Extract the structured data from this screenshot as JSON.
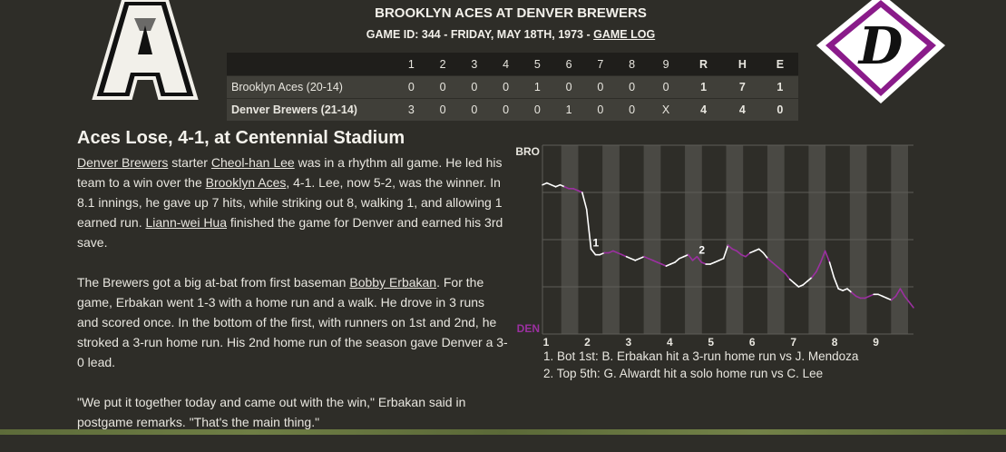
{
  "logos": {
    "away": {
      "letter": "A",
      "icon": "aces-a-logo"
    },
    "home": {
      "letter": "D",
      "icon": "brewers-d-diamond-logo",
      "accent": "#8a1b8a"
    }
  },
  "header": {
    "matchup": "BROOKLYN ACES AT DENVER BREWERS",
    "game_info": "GAME ID: 344 - FRIDAY, MAY 18TH, 1973 - ",
    "game_log_link": "GAME LOG"
  },
  "linescore": {
    "columns": [
      "1",
      "2",
      "3",
      "4",
      "5",
      "6",
      "7",
      "8",
      "9",
      "R",
      "H",
      "E"
    ],
    "rows": [
      {
        "team": "Brooklyn Aces (20-14)",
        "innings": [
          "0",
          "0",
          "0",
          "0",
          "1",
          "0",
          "0",
          "0",
          "0"
        ],
        "R": "1",
        "H": "7",
        "E": "1"
      },
      {
        "team": "Denver Brewers (21-14)",
        "innings": [
          "3",
          "0",
          "0",
          "0",
          "0",
          "1",
          "0",
          "0",
          "X"
        ],
        "R": "4",
        "H": "4",
        "E": "0"
      }
    ]
  },
  "article": {
    "headline": "Aces Lose, 4-1, at Centennial Stadium",
    "p1": {
      "link_team": "Denver Brewers",
      "t1": " starter ",
      "link_pitcher": "Cheol-han Lee",
      "t2": " was in a rhythm all game. He led his team to a win over the ",
      "link_opp": "Brooklyn Aces",
      "t3": ", 4-1. Lee, now 5-2, was the winner. In 8.1 innings, he gave up 7 hits, while striking out 8, walking 1, and allowing 1 earned run. ",
      "link_closer": "Liann-wei Hua",
      "t4": " finished the game for Denver and earned his 3rd save."
    },
    "p2": {
      "t1": "The Brewers got a big at-bat from first baseman ",
      "link_player": "Bobby Erbakan",
      "t2": ". For the game, Erbakan went 1-3 with a home run and a walk. He drove in 3 runs and scored once. In the bottom of the first, with runners on 1st and 2nd, he stroked a 3-run home run. His 2nd home run of the season gave Denver a 3-0 lead."
    },
    "p3": "\"We put it together today and came out with the win,\" Erbakan said in postgame remarks. \"That's the main thing.\""
  },
  "chart_data": {
    "type": "line",
    "series": [
      {
        "values": [
          0.79,
          0.8,
          0.79,
          0.78,
          0.79,
          0.78,
          0.77,
          0.77,
          0.76,
          0.75,
          0.66,
          0.45,
          0.42,
          0.42,
          0.43,
          0.43,
          0.44,
          0.43,
          0.42,
          0.41,
          0.4,
          0.39,
          0.4,
          0.41,
          0.4,
          0.39,
          0.38,
          0.37,
          0.36,
          0.37,
          0.38,
          0.4,
          0.41,
          0.42,
          0.39,
          0.41,
          0.38,
          0.37,
          0.37,
          0.38,
          0.39,
          0.4,
          0.47,
          0.45,
          0.44,
          0.42,
          0.41,
          0.43,
          0.44,
          0.45,
          0.43,
          0.4,
          0.38,
          0.36,
          0.34,
          0.32,
          0.29,
          0.27,
          0.25,
          0.26,
          0.28,
          0.3,
          0.33,
          0.38,
          0.44,
          0.38,
          0.3,
          0.24,
          0.23,
          0.24,
          0.22,
          0.2,
          0.19,
          0.19,
          0.2,
          0.21,
          0.21,
          0.2,
          0.19,
          0.18,
          0.2,
          0.24,
          0.2,
          0.17,
          0.14
        ]
      }
    ],
    "y_labels": {
      "top": "BRO",
      "bottom": "DEN"
    },
    "x_tick_labels": [
      "1",
      "2",
      "3",
      "4",
      "5",
      "6",
      "7",
      "8",
      "9"
    ],
    "annotations": [
      {
        "label": "1",
        "text": "Bot 1st: B. Erbakan hit a 3-run home run vs J. Mendoza"
      },
      {
        "label": "2",
        "text": "Top 5th: G. Alwardt hit a solo home run vs C. Lee"
      }
    ],
    "colors": {
      "bottom_half": "#9b30a0",
      "top_half": "#ffffff",
      "shade": "#4a4944"
    }
  },
  "notes": [
    "1. Bot 1st: B. Erbakan hit a 3-run home run vs J. Mendoza",
    "2. Top 5th: G. Alwardt hit a solo home run vs C. Lee"
  ]
}
